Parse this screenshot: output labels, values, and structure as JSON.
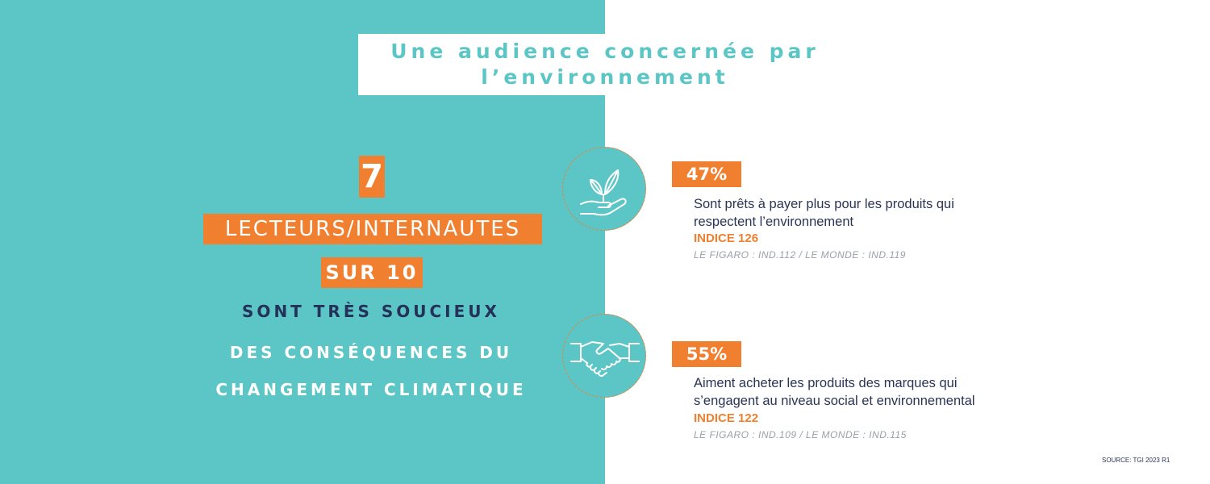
{
  "title": {
    "line1": "Une audience concernée par",
    "line2": "l’environnement"
  },
  "headline": {
    "number": "7",
    "readers": "LECTEURS/INTERNAUTES",
    "out_of": "SUR 10",
    "line3": "SONT TRÈS SOUCIEUX",
    "line4": "DES CONSÉQUENCES DU",
    "line5": "CHANGEMENT CLIMATIQUE"
  },
  "stats": [
    {
      "icon": "plant-in-hand-icon",
      "percent": "47%",
      "desc_line1": "Sont prêts à payer plus pour les produits qui",
      "desc_line2": "respectent l’environnement",
      "indice": "INDICE 126",
      "comparison": "LE FIGARO : IND.112 / LE MONDE : IND.119"
    },
    {
      "icon": "handshake-icon",
      "percent": "55%",
      "desc_line1": "Aiment acheter les produits des marques qui",
      "desc_line2": "s’engagent au niveau social  et environnemental",
      "indice": "INDICE 122",
      "comparison": "LE FIGARO : IND.109 / LE MONDE : IND.115"
    }
  ],
  "source": "SOURCE: TGI 2023 R1",
  "colors": {
    "teal": "#5cc5c5",
    "orange": "#f08030",
    "navy": "#24325a"
  }
}
